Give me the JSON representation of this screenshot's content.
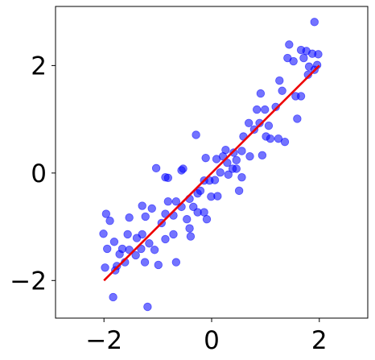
{
  "chart_data": {
    "type": "scatter",
    "title": "",
    "xlabel": "",
    "ylabel": "",
    "xlim": [
      -2.9,
      2.9
    ],
    "ylim": [
      -2.7,
      3.1
    ],
    "grid": false,
    "legend": "none",
    "x_ticks": [
      {
        "value": -2,
        "label": "−2"
      },
      {
        "value": 0,
        "label": "0"
      },
      {
        "value": 2,
        "label": "2"
      }
    ],
    "y_ticks": [
      {
        "value": -2,
        "label": "−2"
      },
      {
        "value": 0,
        "label": "0"
      },
      {
        "value": 2,
        "label": "2"
      }
    ],
    "series": [
      {
        "kind": "scatter",
        "color": "#0000ff",
        "opacity": 0.55,
        "points": [
          [
            1.91,
            2.81
          ],
          [
            1.44,
            2.39
          ],
          [
            1.66,
            2.29
          ],
          [
            1.76,
            2.27
          ],
          [
            1.87,
            2.22
          ],
          [
            1.98,
            2.21
          ],
          [
            1.41,
            2.14
          ],
          [
            1.52,
            2.08
          ],
          [
            1.71,
            2.14
          ],
          [
            1.81,
            1.98
          ],
          [
            1.91,
            1.92
          ],
          [
            1.96,
            2.01
          ],
          [
            1.79,
            1.83
          ],
          [
            1.26,
            1.72
          ],
          [
            1.31,
            1.53
          ],
          [
            1.56,
            1.43
          ],
          [
            1.66,
            1.43
          ],
          [
            0.91,
            1.48
          ],
          [
            1.19,
            1.23
          ],
          [
            0.84,
            1.18
          ],
          [
            0.99,
            1.18
          ],
          [
            0.69,
            0.93
          ],
          [
            0.89,
            0.93
          ],
          [
            1.06,
            0.88
          ],
          [
            0.79,
            0.81
          ],
          [
            1.59,
            1.01
          ],
          [
            0.59,
            0.68
          ],
          [
            1.01,
            0.68
          ],
          [
            1.09,
            0.64
          ],
          [
            1.24,
            0.64
          ],
          [
            1.36,
            0.58
          ],
          [
            0.56,
            0.41
          ],
          [
            0.41,
            0.38
          ],
          [
            0.26,
            0.43
          ],
          [
            0.21,
            0.31
          ],
          [
            -0.11,
            0.28
          ],
          [
            0.09,
            0.26
          ],
          [
            0.46,
            0.24
          ],
          [
            0.71,
            0.31
          ],
          [
            0.94,
            0.33
          ],
          [
            0.29,
            0.19
          ],
          [
            0.39,
            0.08
          ],
          [
            0.46,
            0.08
          ],
          [
            0.16,
            0.01
          ],
          [
            0.31,
            -0.03
          ],
          [
            0.56,
            -0.08
          ],
          [
            -0.14,
            -0.14
          ],
          [
            0.06,
            -0.13
          ],
          [
            -0.29,
            0.71
          ],
          [
            -0.86,
            -0.08
          ],
          [
            -0.81,
            -0.09
          ],
          [
            -1.03,
            0.09
          ],
          [
            -0.56,
            0.05
          ],
          [
            -0.53,
            0.08
          ],
          [
            0.51,
            -0.33
          ],
          [
            -0.26,
            -0.38
          ],
          [
            -0.21,
            -0.33
          ],
          [
            -0.01,
            -0.44
          ],
          [
            0.11,
            -0.43
          ],
          [
            -0.04,
            -0.14
          ],
          [
            -0.81,
            -0.53
          ],
          [
            -0.66,
            -0.53
          ],
          [
            -0.56,
            -0.63
          ],
          [
            -0.41,
            -0.48
          ],
          [
            -0.34,
            -0.63
          ],
          [
            -0.26,
            -0.73
          ],
          [
            -0.14,
            -0.73
          ],
          [
            -0.09,
            -0.86
          ],
          [
            -0.46,
            -0.86
          ],
          [
            -1.29,
            -0.61
          ],
          [
            -1.11,
            -0.66
          ],
          [
            -1.23,
            -0.81
          ],
          [
            -1.53,
            -0.83
          ],
          [
            -0.93,
            -0.93
          ],
          [
            -0.86,
            -0.76
          ],
          [
            -1.96,
            -0.76
          ],
          [
            -1.89,
            -0.89
          ],
          [
            -0.71,
            -0.79
          ],
          [
            -2.01,
            -1.13
          ],
          [
            -1.81,
            -1.28
          ],
          [
            -1.66,
            -1.41
          ],
          [
            -1.56,
            -1.14
          ],
          [
            -1.39,
            -1.21
          ],
          [
            -1.29,
            -1.14
          ],
          [
            -1.16,
            -1.31
          ],
          [
            -0.86,
            -1.23
          ],
          [
            -0.71,
            -1.14
          ],
          [
            -0.41,
            -1.03
          ],
          [
            -0.39,
            -1.18
          ],
          [
            -1.71,
            -1.51
          ],
          [
            -1.53,
            -1.43
          ],
          [
            -1.41,
            -1.53
          ],
          [
            -1.31,
            -1.41
          ],
          [
            -1.06,
            -1.43
          ],
          [
            -1.94,
            -1.41
          ],
          [
            -1.98,
            -1.76
          ],
          [
            -1.76,
            -1.73
          ],
          [
            -1.79,
            -1.81
          ],
          [
            -1.61,
            -1.66
          ],
          [
            -1.24,
            -1.66
          ],
          [
            -0.99,
            -1.71
          ],
          [
            -0.66,
            -1.66
          ],
          [
            -1.83,
            -2.31
          ],
          [
            -1.19,
            -2.49
          ]
        ]
      },
      {
        "kind": "line",
        "color": "#ee0000",
        "points": [
          [
            -2,
            -2
          ],
          [
            2,
            2
          ]
        ]
      }
    ]
  }
}
